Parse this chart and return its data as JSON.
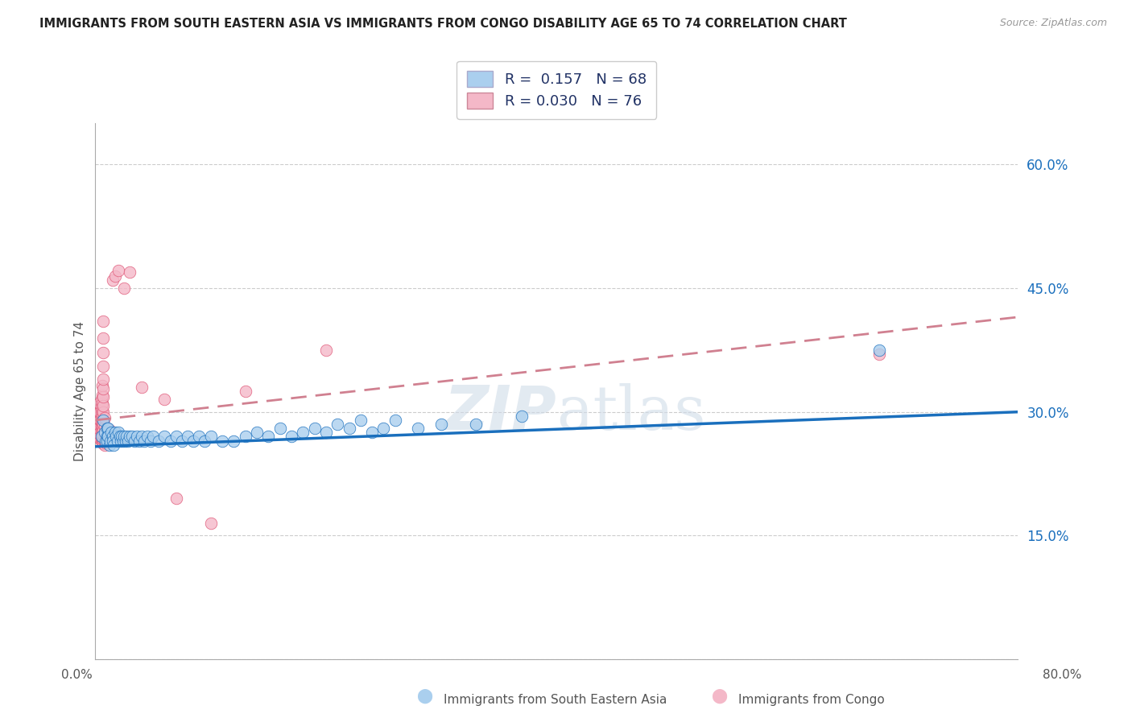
{
  "title": "IMMIGRANTS FROM SOUTH EASTERN ASIA VS IMMIGRANTS FROM CONGO DISABILITY AGE 65 TO 74 CORRELATION CHART",
  "source": "Source: ZipAtlas.com",
  "ylabel": "Disability Age 65 to 74",
  "x_range": [
    0.0,
    0.8
  ],
  "y_range": [
    0.0,
    0.65
  ],
  "color_blue": "#aacfee",
  "color_pink": "#f4b8c8",
  "line_blue": "#1a6fbd",
  "line_pink_solid": "#e05878",
  "line_pink_dash": "#d08090",
  "watermark_color": "#d0dce8",
  "blue_scatter_x": [
    0.005,
    0.007,
    0.008,
    0.009,
    0.01,
    0.01,
    0.01,
    0.011,
    0.011,
    0.012,
    0.013,
    0.014,
    0.015,
    0.015,
    0.016,
    0.017,
    0.018,
    0.019,
    0.02,
    0.021,
    0.022,
    0.023,
    0.024,
    0.025,
    0.026,
    0.027,
    0.028,
    0.03,
    0.032,
    0.034,
    0.036,
    0.038,
    0.04,
    0.042,
    0.045,
    0.048,
    0.05,
    0.055,
    0.06,
    0.065,
    0.07,
    0.075,
    0.08,
    0.085,
    0.09,
    0.095,
    0.1,
    0.11,
    0.12,
    0.13,
    0.14,
    0.15,
    0.16,
    0.17,
    0.18,
    0.19,
    0.2,
    0.21,
    0.22,
    0.23,
    0.24,
    0.25,
    0.26,
    0.28,
    0.3,
    0.33,
    0.37,
    0.68
  ],
  "blue_scatter_y": [
    0.27,
    0.29,
    0.275,
    0.265,
    0.28,
    0.27,
    0.265,
    0.28,
    0.27,
    0.26,
    0.265,
    0.275,
    0.27,
    0.265,
    0.26,
    0.275,
    0.27,
    0.265,
    0.275,
    0.27,
    0.265,
    0.27,
    0.265,
    0.27,
    0.265,
    0.27,
    0.265,
    0.27,
    0.27,
    0.265,
    0.27,
    0.265,
    0.27,
    0.265,
    0.27,
    0.265,
    0.27,
    0.265,
    0.27,
    0.265,
    0.27,
    0.265,
    0.27,
    0.265,
    0.27,
    0.265,
    0.27,
    0.265,
    0.265,
    0.27,
    0.275,
    0.27,
    0.28,
    0.27,
    0.275,
    0.28,
    0.275,
    0.285,
    0.28,
    0.29,
    0.275,
    0.28,
    0.29,
    0.28,
    0.285,
    0.285,
    0.295,
    0.375
  ],
  "pink_scatter_x": [
    0.001,
    0.002,
    0.002,
    0.002,
    0.003,
    0.003,
    0.003,
    0.003,
    0.003,
    0.003,
    0.003,
    0.003,
    0.004,
    0.004,
    0.004,
    0.004,
    0.004,
    0.004,
    0.005,
    0.005,
    0.005,
    0.005,
    0.005,
    0.005,
    0.005,
    0.005,
    0.005,
    0.005,
    0.006,
    0.006,
    0.006,
    0.006,
    0.006,
    0.006,
    0.006,
    0.006,
    0.006,
    0.006,
    0.006,
    0.007,
    0.007,
    0.007,
    0.007,
    0.007,
    0.007,
    0.007,
    0.007,
    0.007,
    0.007,
    0.007,
    0.007,
    0.007,
    0.007,
    0.007,
    0.008,
    0.008,
    0.008,
    0.008,
    0.008,
    0.009,
    0.009,
    0.01,
    0.01,
    0.012,
    0.015,
    0.017,
    0.02,
    0.025,
    0.03,
    0.04,
    0.06,
    0.07,
    0.1,
    0.13,
    0.2,
    0.68
  ],
  "pink_scatter_y": [
    0.273,
    0.275,
    0.28,
    0.29,
    0.27,
    0.275,
    0.28,
    0.285,
    0.29,
    0.295,
    0.3,
    0.31,
    0.268,
    0.272,
    0.278,
    0.283,
    0.29,
    0.3,
    0.265,
    0.268,
    0.272,
    0.278,
    0.283,
    0.288,
    0.293,
    0.3,
    0.308,
    0.315,
    0.263,
    0.267,
    0.272,
    0.277,
    0.283,
    0.288,
    0.295,
    0.302,
    0.31,
    0.32,
    0.332,
    0.262,
    0.267,
    0.272,
    0.278,
    0.285,
    0.292,
    0.3,
    0.308,
    0.318,
    0.328,
    0.34,
    0.355,
    0.372,
    0.39,
    0.41,
    0.26,
    0.267,
    0.274,
    0.282,
    0.293,
    0.263,
    0.275,
    0.265,
    0.28,
    0.278,
    0.46,
    0.465,
    0.472,
    0.45,
    0.47,
    0.33,
    0.315,
    0.195,
    0.165,
    0.325,
    0.375,
    0.37
  ],
  "blue_line_x0": 0.0,
  "blue_line_y0": 0.258,
  "blue_line_x1": 0.8,
  "blue_line_y1": 0.3,
  "pink_line_x0": 0.0,
  "pink_line_y0": 0.29,
  "pink_line_x1": 0.8,
  "pink_line_y1": 0.415,
  "y_ticks": [
    0.0,
    0.15,
    0.3,
    0.45,
    0.6
  ],
  "y_tick_labels": [
    "",
    "15.0%",
    "30.0%",
    "45.0%",
    "60.0%"
  ],
  "legend_line1": "R =  0.157   N = 68",
  "legend_line2": "R = 0.030   N = 76"
}
